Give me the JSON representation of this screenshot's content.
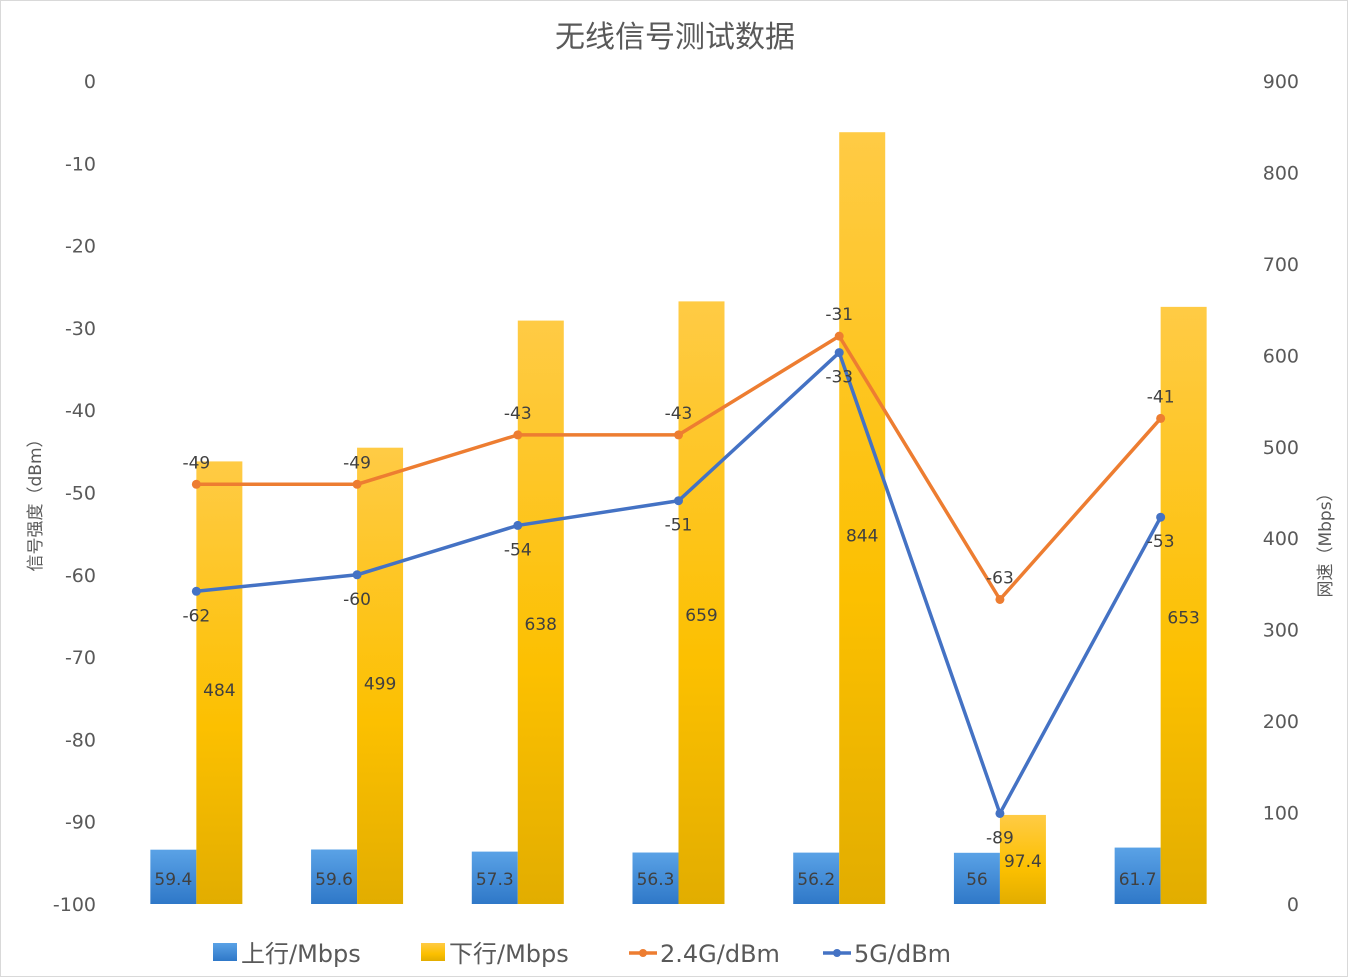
{
  "chart_data": {
    "type": "bar",
    "title": "无线信号测试数据",
    "categories": [
      "",
      "",
      "",
      "",
      "",
      "",
      ""
    ],
    "series": [
      {
        "name": "上行/Mbps",
        "kind": "bar",
        "axis": "right",
        "values": [
          59.4,
          59.6,
          57.3,
          56.3,
          56.2,
          56,
          61.7
        ],
        "color": "#4a90d9"
      },
      {
        "name": "下行/Mbps",
        "kind": "bar",
        "axis": "right",
        "values": [
          484,
          499,
          638,
          659,
          844,
          97.4,
          653
        ],
        "color": "#fcc12e"
      },
      {
        "name": "2.4G/dBm",
        "kind": "line",
        "axis": "left",
        "values": [
          -49,
          -49,
          -43,
          -43,
          -31,
          -63,
          -41
        ],
        "color": "#ed7d31"
      },
      {
        "name": "5G/dBm",
        "kind": "line",
        "axis": "left",
        "values": [
          -62,
          -60,
          -54,
          -51,
          -33,
          -89,
          -53
        ],
        "color": "#4472c4"
      }
    ],
    "y_left": {
      "label": "信号强度（dBm）",
      "range": [
        -100,
        0
      ],
      "ticks": [
        0,
        -10,
        -20,
        -30,
        -40,
        -50,
        -60,
        -70,
        -80,
        -90,
        -100
      ]
    },
    "y_right": {
      "label": "网速（Mbps）",
      "range": [
        0,
        900
      ],
      "ticks": [
        900,
        800,
        700,
        600,
        500,
        400,
        300,
        200,
        100,
        0
      ]
    },
    "grid": false,
    "legend": "bottom"
  }
}
